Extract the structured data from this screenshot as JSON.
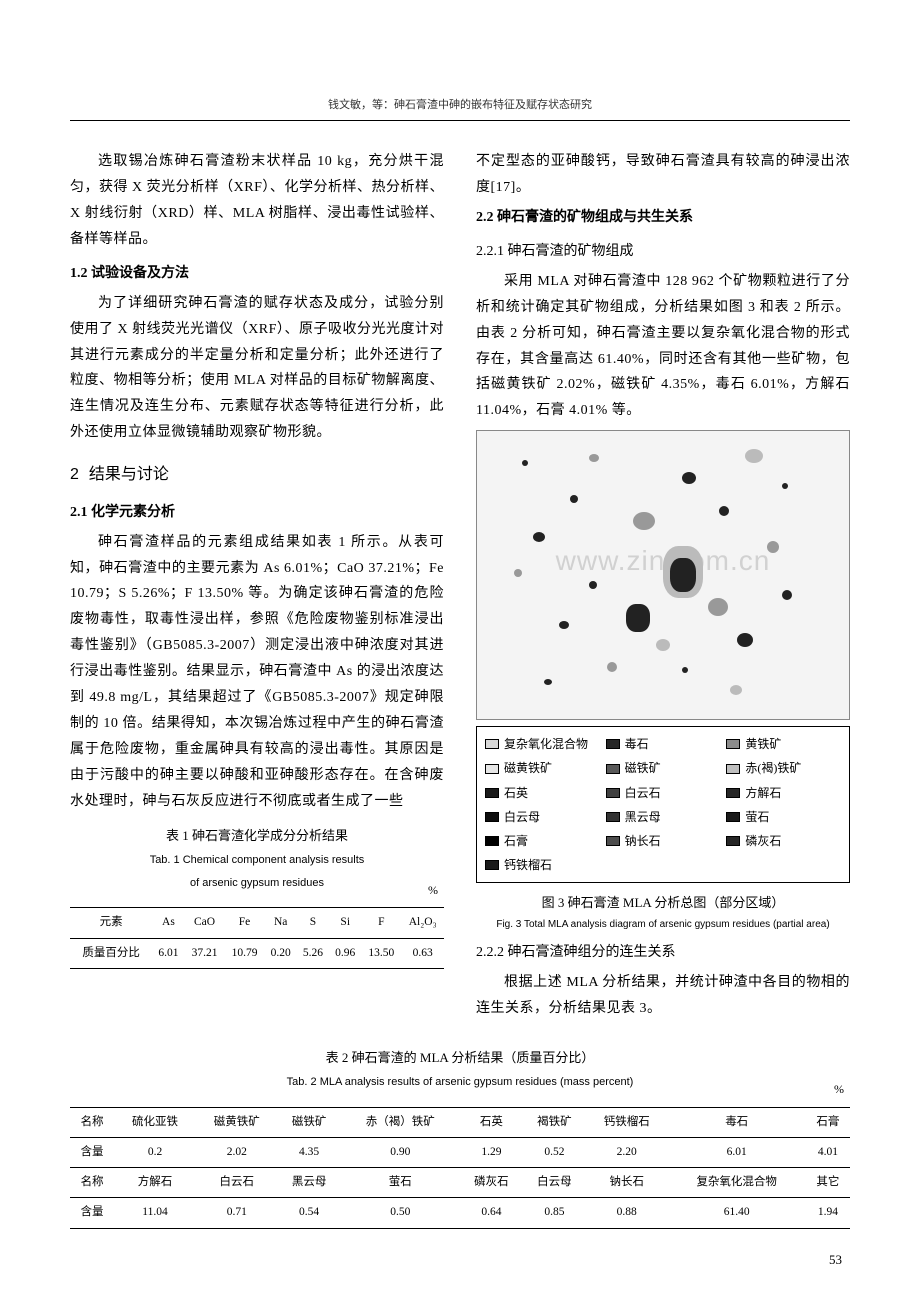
{
  "header": "钱文敏，等：砷石膏渣中砷的嵌布特征及赋存状态研究",
  "page_number": "53",
  "left": {
    "p1": "选取锡冶炼砷石膏渣粉末状样品 10 kg，充分烘干混匀，获得 X 荧光分析样（XRF）、化学分析样、热分析样、X 射线衍射（XRD）样、MLA 树脂样、浸出毒性试验样、备样等样品。",
    "s12_title": "1.2  试验设备及方法",
    "p2": "为了详细研究砷石膏渣的赋存状态及成分，试验分别使用了 X 射线荧光光谱仪（XRF）、原子吸收分光光度计对其进行元素成分的半定量分析和定量分析；此外还进行了粒度、物相等分析；使用 MLA 对样品的目标矿物解离度、连生情况及连生分布、元素赋存状态等特征进行分析，此外还使用立体显微镜辅助观察矿物形貌。",
    "s2_num": "2",
    "s2_title": "结果与讨论",
    "s21_title": "2.1  化学元素分析",
    "p3": "砷石膏渣样品的元素组成结果如表 1 所示。从表可知，砷石膏渣中的主要元素为 As 6.01%；CaO 37.21%；Fe 10.79；S 5.26%；F 13.50% 等。为确定该砷石膏渣的危险废物毒性，取毒性浸出样，参照《危险废物鉴别标准浸出毒性鉴别》（GB5085.3-2007）测定浸出液中砷浓度对其进行浸出毒性鉴别。结果显示，砷石膏渣中 As 的浸出浓度达到 49.8 mg/L，其结果超过了《GB5085.3-2007》规定砷限制的 10 倍。结果得知，本次锡冶炼过程中产生的砷石膏渣属于危险废物，重金属砷具有较高的浸出毒性。其原因是由于污酸中的砷主要以砷酸和亚砷酸形态存在。在含砷废水处理时，砷与石灰反应进行不彻底或者生成了一些"
  },
  "table1": {
    "title_cn": "表 1  砷石膏渣化学成分分析结果",
    "title_en1": "Tab. 1  Chemical component analysis results",
    "title_en2": "of arsenic gypsum residues",
    "unit": "%",
    "row_label1": "元素",
    "cols": [
      "As",
      "CaO",
      "Fe",
      "Na",
      "S",
      "Si",
      "F",
      "Al₂O₃"
    ],
    "row_label2": "质量百分比",
    "vals": [
      "6.01",
      "37.21",
      "10.79",
      "0.20",
      "5.26",
      "0.96",
      "13.50",
      "0.63"
    ]
  },
  "right": {
    "p1": "不定型态的亚砷酸钙，导致砷石膏渣具有较高的砷浸出浓度[17]。",
    "s22_title": "2.2  砷石膏渣的矿物组成与共生关系",
    "s221_title": "2.2.1  砷石膏渣的矿物组成",
    "p2": "采用 MLA 对砷石膏渣中 128 962 个矿物颗粒进行了分析和统计确定其矿物组成，分析结果如图 3 和表 2 所示。由表 2 分析可知，砷石膏渣主要以复杂氧化混合物的形式存在，其含量高达 61.40%，同时还含有其他一些矿物，包括磁黄铁矿 2.02%，磁铁矿 4.35%，毒石 6.01%，方解石 11.04%，石膏 4.01% 等。",
    "fig3_cap_cn": "图 3  砷石膏渣 MLA 分析总图（部分区域）",
    "fig3_cap_en": "Fig. 3  Total MLA analysis diagram of arsenic gypsum residues (partial area)",
    "s222_title": "2.2.2  砷石膏渣砷组分的连生关系",
    "p3": "根据上述 MLA 分析结果，并统计砷渣中各目的物相的连生关系，分析结果见表 3。"
  },
  "legend": {
    "items": [
      {
        "label": "复杂氧化混合物",
        "color": "#d9d9d9"
      },
      {
        "label": "毒石",
        "color": "#262626"
      },
      {
        "label": "黄铁矿",
        "color": "#8c8c8c"
      },
      {
        "label": "磁黄铁矿",
        "color": "#e6e6e6"
      },
      {
        "label": "磁铁矿",
        "color": "#595959"
      },
      {
        "label": "赤(褐)铁矿",
        "color": "#bfbfbf"
      },
      {
        "label": "石英",
        "color": "#1a1a1a"
      },
      {
        "label": "白云石",
        "color": "#404040"
      },
      {
        "label": "方解石",
        "color": "#262626"
      },
      {
        "label": "白云母",
        "color": "#0d0d0d"
      },
      {
        "label": "黑云母",
        "color": "#333333"
      },
      {
        "label": "萤石",
        "color": "#1a1a1a"
      },
      {
        "label": "石膏",
        "color": "#000000"
      },
      {
        "label": "钠长石",
        "color": "#4d4d4d"
      },
      {
        "label": "磷灰石",
        "color": "#262626"
      },
      {
        "label": "钙铁榴石",
        "color": "#1a1a1a"
      }
    ]
  },
  "table2": {
    "title_cn": "表 2  砷石膏渣的 MLA 分析结果（质量百分比）",
    "title_en": "Tab. 2  MLA analysis results of arsenic gypsum residues  (mass percent)",
    "unit": "%",
    "r1_label": "名称",
    "r1_vals": [
      "硫化亚铁",
      "磁黄铁矿",
      "磁铁矿",
      "赤（褐）铁矿",
      "石英",
      "褐铁矿",
      "钙铁榴石",
      "毒石",
      "石膏"
    ],
    "r2_label": "含量",
    "r2_vals": [
      "0.2",
      "2.02",
      "4.35",
      "0.90",
      "1.29",
      "0.52",
      "2.20",
      "6.01",
      "4.01"
    ],
    "r3_label": "名称",
    "r3_vals": [
      "方解石",
      "白云石",
      "黑云母",
      "萤石",
      "磷灰石",
      "白云母",
      "钠长石",
      "复杂氧化混合物",
      "其它"
    ],
    "r4_label": "含量",
    "r4_vals": [
      "11.04",
      "0.71",
      "0.54",
      "0.50",
      "0.64",
      "0.85",
      "0.88",
      "61.40",
      "1.94"
    ]
  },
  "watermark": "www.zin.com.cn"
}
